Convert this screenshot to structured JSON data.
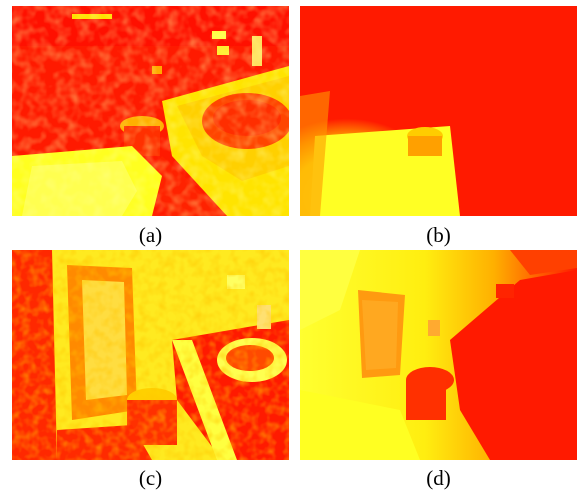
{
  "panels": [
    {
      "id": "a",
      "caption": "(a)"
    },
    {
      "id": "b",
      "caption": "(b)"
    },
    {
      "id": "c",
      "caption": "(c)"
    },
    {
      "id": "d",
      "caption": "(d)"
    }
  ],
  "colors": {
    "far": "#ff1a00",
    "mid": "#ff6a00",
    "near": "#ffff1e",
    "bright": "#ffff55"
  }
}
